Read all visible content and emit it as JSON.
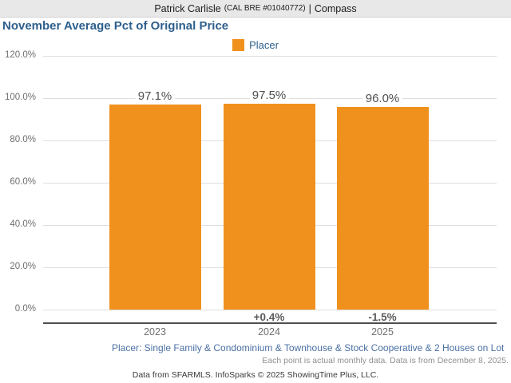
{
  "header": {
    "agent_name": "Patrick Carlisle",
    "license": "(CAL BRE #01040772)",
    "separator": "|",
    "brand": "Compass"
  },
  "title": "November Average Pct of Original Price",
  "legend": {
    "label": "Placer",
    "swatch_color": "#f0911e"
  },
  "chart_data": {
    "type": "bar",
    "title": "November Average Pct of Original Price",
    "series_name": "Placer",
    "categories": [
      "2023",
      "2024",
      "2025"
    ],
    "values": [
      97.1,
      97.5,
      96.0
    ],
    "value_labels": [
      "97.1%",
      "97.5%",
      "96.0%"
    ],
    "change_labels": [
      "",
      "+0.4%",
      "-1.5%"
    ],
    "xlabel": "",
    "ylabel": "",
    "ylim": [
      0,
      120
    ],
    "ytick_values": [
      0,
      20,
      40,
      60,
      80,
      100,
      120
    ],
    "ytick_labels": [
      "0.0%",
      "20.0%",
      "40.0%",
      "60.0%",
      "80.0%",
      "100.0%",
      "120.0%"
    ],
    "bar_color": "#f0911e",
    "grid": true,
    "legend_position": "top-center"
  },
  "footnotes": {
    "filter_line": "Placer: Single Family & Condominium & Townhouse & Stock Cooperative & 2 Houses on Lot",
    "data_note": "Each point is actual monthly data. Data is from December 8, 2025.",
    "attribution": "Data from SFARMLS. InfoSparks © 2025 ShowingTime Plus, LLC."
  },
  "colors": {
    "bar_orange": "#f0911e",
    "title_blue": "#2e5f8c",
    "footnote_blue": "#4a70a4",
    "header_background": "#e8e8e8",
    "gridline": "#dedede",
    "axis_line": "#4f4f4f"
  }
}
